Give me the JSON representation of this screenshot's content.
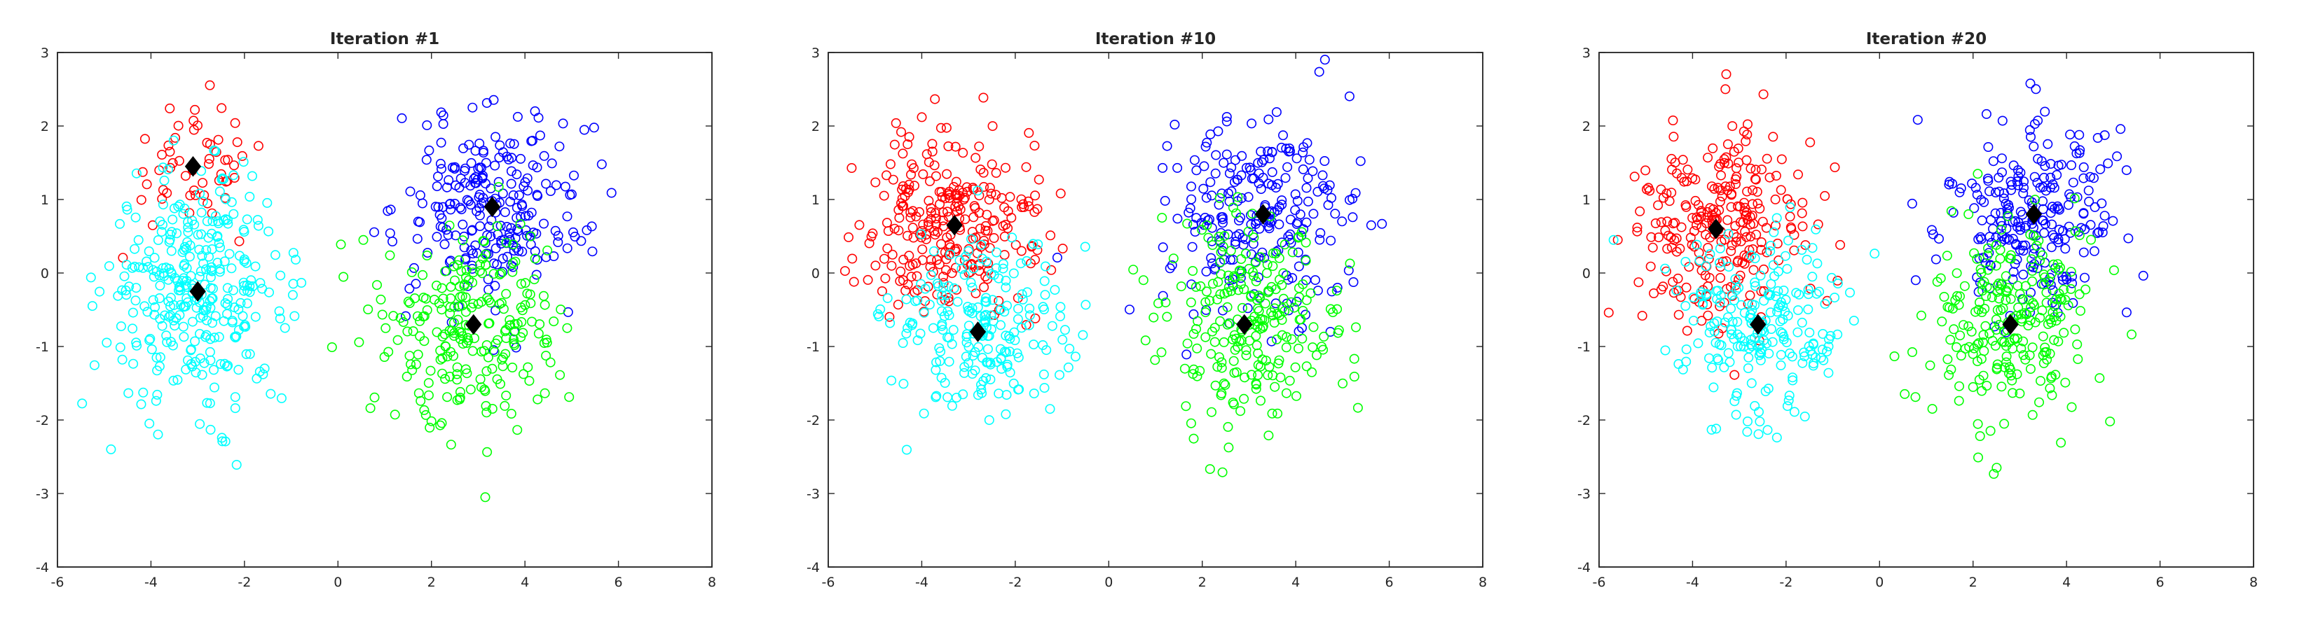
{
  "figure": {
    "background": "#ffffff",
    "axis_color": "#262626"
  },
  "chart_data": [
    {
      "type": "scatter",
      "title": "Iteration #1",
      "xlim": [
        -6,
        8
      ],
      "ylim": [
        -4,
        3
      ],
      "xticks": [
        -6,
        -4,
        -2,
        0,
        2,
        4,
        6,
        8
      ],
      "yticks": [
        -4,
        -3,
        -2,
        -1,
        0,
        1,
        2,
        3
      ],
      "marker": "circle-open",
      "grid": false,
      "clusters": [
        {
          "color": "#ff0000",
          "center": [
            -3.1,
            1.45
          ],
          "spread": [
            0.75,
            0.45
          ],
          "count": 55
        },
        {
          "color": "#00ffff",
          "center": [
            -3.0,
            -0.25
          ],
          "spread": [
            0.95,
            0.75
          ],
          "count": 330
        },
        {
          "color": "#0000ff",
          "center": [
            3.3,
            0.9
          ],
          "spread": [
            1.0,
            0.65
          ],
          "count": 240
        },
        {
          "color": "#00ff00",
          "center": [
            2.9,
            -0.7
          ],
          "spread": [
            0.95,
            0.7
          ],
          "count": 240
        }
      ],
      "centroids": [
        [
          -3.1,
          1.45
        ],
        [
          -3.0,
          -0.25
        ],
        [
          3.3,
          0.9
        ],
        [
          2.9,
          -0.7
        ]
      ]
    },
    {
      "type": "scatter",
      "title": "Iteration #10",
      "xlim": [
        -6,
        8
      ],
      "ylim": [
        -4,
        3
      ],
      "xticks": [
        -6,
        -4,
        -2,
        0,
        2,
        4,
        6,
        8
      ],
      "yticks": [
        -4,
        -3,
        -2,
        -1,
        0,
        1,
        2,
        3
      ],
      "marker": "circle-open",
      "grid": false,
      "clusters": [
        {
          "color": "#ff0000",
          "center": [
            -3.3,
            0.65
          ],
          "spread": [
            0.95,
            0.65
          ],
          "count": 270
        },
        {
          "color": "#00ffff",
          "center": [
            -2.8,
            -0.8
          ],
          "spread": [
            0.95,
            0.6
          ],
          "count": 210
        },
        {
          "color": "#0000ff",
          "center": [
            3.3,
            0.8
          ],
          "spread": [
            1.0,
            0.65
          ],
          "count": 240
        },
        {
          "color": "#00ff00",
          "center": [
            2.9,
            -0.7
          ],
          "spread": [
            0.95,
            0.7
          ],
          "count": 240
        }
      ],
      "centroids": [
        [
          -3.3,
          0.65
        ],
        [
          -2.8,
          -0.8
        ],
        [
          3.3,
          0.8
        ],
        [
          2.9,
          -0.7
        ]
      ]
    },
    {
      "type": "scatter",
      "title": "Iteration #20",
      "xlim": [
        -6,
        8
      ],
      "ylim": [
        -4,
        3
      ],
      "xticks": [
        -6,
        -4,
        -2,
        0,
        2,
        4,
        6,
        8
      ],
      "yticks": [
        -4,
        -3,
        -2,
        -1,
        0,
        1,
        2,
        3
      ],
      "marker": "circle-open",
      "grid": false,
      "clusters": [
        {
          "color": "#ff0000",
          "center": [
            -3.5,
            0.6
          ],
          "spread": [
            0.9,
            0.7
          ],
          "count": 260
        },
        {
          "color": "#00ffff",
          "center": [
            -2.6,
            -0.7
          ],
          "spread": [
            0.95,
            0.65
          ],
          "count": 220
        },
        {
          "color": "#0000ff",
          "center": [
            3.3,
            0.8
          ],
          "spread": [
            1.0,
            0.65
          ],
          "count": 240
        },
        {
          "color": "#00ff00",
          "center": [
            2.8,
            -0.7
          ],
          "spread": [
            0.95,
            0.7
          ],
          "count": 240
        }
      ],
      "centroids": [
        [
          -3.5,
          0.6
        ],
        [
          -2.6,
          -0.7
        ],
        [
          3.3,
          0.8
        ],
        [
          2.8,
          -0.7
        ]
      ]
    }
  ]
}
